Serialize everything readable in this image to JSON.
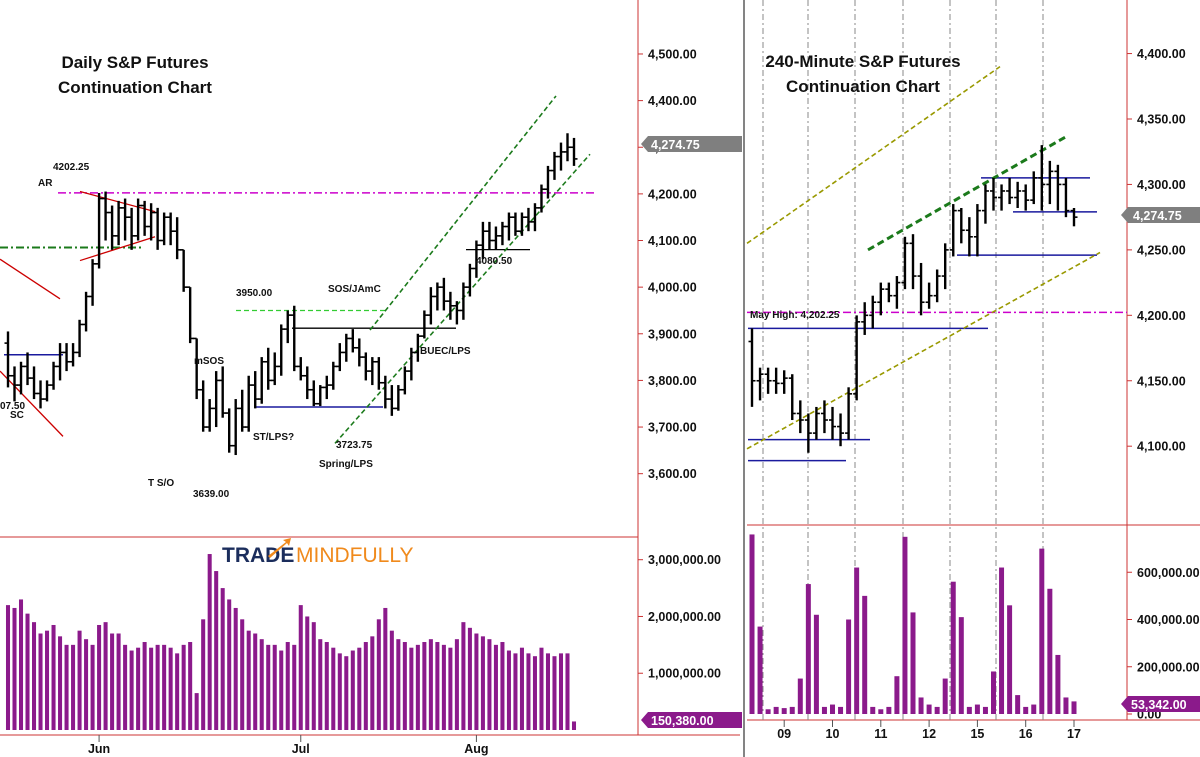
{
  "chart_data": [
    {
      "type": "bar",
      "title": "Daily S&P Futures",
      "subtitle": "Continuation Chart",
      "instrument_type": "ohlc-bars-with-volume",
      "x_tick_labels": [
        "Jun",
        "Jul",
        "Aug"
      ],
      "y_tick_labels": [
        "4,500.00",
        "4,400.00",
        "4,300.00",
        "4,200.00",
        "4,100.00",
        "4,000.00",
        "3,900.00",
        "3,800.00",
        "3,700.00",
        "3,600.00"
      ],
      "ylim": [
        3550,
        4560
      ],
      "last_price": "4,274.75",
      "volume_tick_labels": [
        "3,000,000.00",
        "2,000,000.00",
        "1,000,000.00"
      ],
      "volume_ylim": [
        0,
        3400000
      ],
      "last_volume": "150,380.00",
      "bars": [
        [
          3880,
          3905,
          3785,
          3810
        ],
        [
          3810,
          3830,
          3755,
          3790
        ],
        [
          3790,
          3840,
          3770,
          3830
        ],
        [
          3830,
          3860,
          3790,
          3805
        ],
        [
          3805,
          3830,
          3760,
          3772
        ],
        [
          3772,
          3800,
          3740,
          3760
        ],
        [
          3760,
          3800,
          3755,
          3790
        ],
        [
          3790,
          3840,
          3780,
          3830
        ],
        [
          3830,
          3880,
          3800,
          3860
        ],
        [
          3860,
          3880,
          3820,
          3840
        ],
        [
          3840,
          3880,
          3830,
          3860
        ],
        [
          3860,
          3930,
          3850,
          3920
        ],
        [
          3920,
          3990,
          3905,
          3980
        ],
        [
          3980,
          4060,
          3960,
          4050
        ],
        [
          4050,
          4202,
          4040,
          4190
        ],
        [
          4190,
          4205,
          4100,
          4160
        ],
        [
          4160,
          4175,
          4080,
          4110
        ],
        [
          4110,
          4185,
          4090,
          4170
        ],
        [
          4170,
          4190,
          4100,
          4150
        ],
        [
          4150,
          4170,
          4080,
          4110
        ],
        [
          4110,
          4190,
          4100,
          4175
        ],
        [
          4175,
          4185,
          4110,
          4130
        ],
        [
          4130,
          4180,
          4100,
          4160
        ],
        [
          4160,
          4170,
          4080,
          4100
        ],
        [
          4100,
          4160,
          4090,
          4150
        ],
        [
          4150,
          4160,
          4090,
          4120
        ],
        [
          4120,
          4150,
          4060,
          4080
        ],
        [
          4080,
          4080,
          3990,
          4000
        ],
        [
          4000,
          4000,
          3880,
          3890
        ],
        [
          3890,
          3890,
          3760,
          3780
        ],
        [
          3780,
          3800,
          3690,
          3700
        ],
        [
          3700,
          3760,
          3690,
          3740
        ],
        [
          3740,
          3820,
          3700,
          3800
        ],
        [
          3800,
          3830,
          3720,
          3730
        ],
        [
          3730,
          3740,
          3645,
          3660
        ],
        [
          3660,
          3760,
          3640,
          3740
        ],
        [
          3740,
          3780,
          3690,
          3700
        ],
        [
          3700,
          3810,
          3690,
          3790
        ],
        [
          3790,
          3820,
          3740,
          3760
        ],
        [
          3760,
          3850,
          3750,
          3840
        ],
        [
          3840,
          3870,
          3780,
          3800
        ],
        [
          3800,
          3860,
          3790,
          3830
        ],
        [
          3830,
          3920,
          3810,
          3910
        ],
        [
          3910,
          3950,
          3880,
          3940
        ],
        [
          3940,
          3960,
          3820,
          3830
        ],
        [
          3830,
          3850,
          3800,
          3810
        ],
        [
          3810,
          3830,
          3760,
          3780
        ],
        [
          3780,
          3800,
          3745,
          3750
        ],
        [
          3750,
          3790,
          3745,
          3785
        ],
        [
          3785,
          3810,
          3760,
          3790
        ],
        [
          3790,
          3840,
          3780,
          3830
        ],
        [
          3830,
          3880,
          3820,
          3860
        ],
        [
          3860,
          3900,
          3840,
          3890
        ],
        [
          3890,
          3910,
          3860,
          3870
        ],
        [
          3870,
          3890,
          3830,
          3850
        ],
        [
          3850,
          3860,
          3800,
          3820
        ],
        [
          3820,
          3850,
          3790,
          3840
        ],
        [
          3840,
          3850,
          3780,
          3795
        ],
        [
          3795,
          3810,
          3740,
          3760
        ],
        [
          3760,
          3790,
          3724,
          3740
        ],
        [
          3740,
          3790,
          3735,
          3780
        ],
        [
          3780,
          3830,
          3770,
          3820
        ],
        [
          3820,
          3870,
          3800,
          3860
        ],
        [
          3860,
          3900,
          3840,
          3895
        ],
        [
          3895,
          3950,
          3890,
          3940
        ],
        [
          3940,
          4000,
          3920,
          3980
        ],
        [
          3980,
          4010,
          3950,
          4000
        ],
        [
          4000,
          4020,
          3950,
          3970
        ],
        [
          3970,
          3990,
          3930,
          3960
        ],
        [
          3960,
          3970,
          3920,
          3950
        ],
        [
          3950,
          4010,
          3930,
          4000
        ],
        [
          4000,
          4050,
          3980,
          4040
        ],
        [
          4040,
          4100,
          4020,
          4090
        ],
        [
          4090,
          4140,
          4060,
          4120
        ],
        [
          4120,
          4140,
          4080,
          4100
        ],
        [
          4100,
          4130,
          4081,
          4110
        ],
        [
          4110,
          4140,
          4090,
          4130
        ],
        [
          4130,
          4160,
          4100,
          4150
        ],
        [
          4150,
          4160,
          4110,
          4120
        ],
        [
          4120,
          4160,
          4110,
          4150
        ],
        [
          4150,
          4170,
          4120,
          4140
        ],
        [
          4140,
          4180,
          4120,
          4170
        ],
        [
          4170,
          4220,
          4160,
          4210
        ],
        [
          4210,
          4260,
          4190,
          4250
        ],
        [
          4250,
          4290,
          4230,
          4280
        ],
        [
          4280,
          4310,
          4250,
          4290
        ],
        [
          4290,
          4330,
          4270,
          4300
        ],
        [
          4300,
          4320,
          4260,
          4275
        ]
      ],
      "volume": [
        2200000,
        2150000,
        2300000,
        2050000,
        1900000,
        1700000,
        1750000,
        1850000,
        1650000,
        1500000,
        1500000,
        1750000,
        1600000,
        1500000,
        1850000,
        1900000,
        1700000,
        1700000,
        1500000,
        1400000,
        1450000,
        1550000,
        1450000,
        1500000,
        1500000,
        1450000,
        1350000,
        1500000,
        1550000,
        650000,
        1950000,
        3100000,
        2800000,
        2500000,
        2300000,
        2150000,
        1950000,
        1750000,
        1700000,
        1600000,
        1500000,
        1500000,
        1400000,
        1550000,
        1500000,
        2200000,
        2000000,
        1900000,
        1600000,
        1550000,
        1450000,
        1350000,
        1300000,
        1400000,
        1450000,
        1550000,
        1650000,
        1950000,
        2150000,
        1750000,
        1600000,
        1550000,
        1450000,
        1500000,
        1550000,
        1600000,
        1550000,
        1500000,
        1450000,
        1600000,
        1900000,
        1800000,
        1700000,
        1650000,
        1600000,
        1500000,
        1550000,
        1400000,
        1350000,
        1450000,
        1350000,
        1300000,
        1450000,
        1350000,
        1300000,
        1350000,
        1350000,
        150380
      ],
      "annotations": [
        "AR",
        "4202.25",
        "07.50",
        "SC",
        "T S/O",
        "3639.00",
        "mSOS",
        "3950.00",
        "ST/LPS?",
        "3723.75",
        "Spring/LPS",
        "SOS/JAmC",
        "BUEC/LPS",
        "4080.50"
      ],
      "logo": "TRADEMINDFULLY",
      "colors": {
        "bar": "#000000",
        "volume": "#8b1a8b",
        "axis": "#cc3333",
        "horizontal_support": "#1a1a9e",
        "trend_channel": "#1b7a1b",
        "resistance_level": "#cc00cc",
        "wedge": "#cc0000",
        "last_price_tag": "#7f7f7f",
        "last_volume_tag": "#8b1a8b"
      }
    },
    {
      "type": "bar",
      "title": "240-Minute S&P Futures",
      "subtitle": "Continuation Chart",
      "instrument_type": "ohlc-bars-with-volume",
      "x_tick_labels": [
        "09",
        "10",
        "11",
        "12",
        "15",
        "16",
        "17"
      ],
      "y_tick_labels": [
        "4,400.00",
        "4,350.00",
        "4,300.00",
        "4,250.00",
        "4,200.00",
        "4,150.00",
        "4,100.00"
      ],
      "ylim": [
        4065,
        4418
      ],
      "last_price": "4,274.75",
      "volume_tick_labels": [
        "600,000.00",
        "400,000.00",
        "200,000.00",
        "0.00"
      ],
      "volume_ylim": [
        0,
        800000
      ],
      "last_volume": "53,342.00",
      "reference_label": "May High: 4,202.25",
      "bars": [
        [
          4180,
          4190,
          4130,
          4150
        ],
        [
          4150,
          4160,
          4135,
          4155
        ],
        [
          4155,
          4160,
          4140,
          4150
        ],
        [
          4150,
          4160,
          4140,
          4148
        ],
        [
          4148,
          4158,
          4140,
          4152
        ],
        [
          4152,
          4155,
          4120,
          4125
        ],
        [
          4125,
          4135,
          4110,
          4120
        ],
        [
          4120,
          4125,
          4095,
          4110
        ],
        [
          4110,
          4130,
          4105,
          4125
        ],
        [
          4125,
          4135,
          4110,
          4120
        ],
        [
          4120,
          4130,
          4105,
          4115
        ],
        [
          4115,
          4125,
          4100,
          4110
        ],
        [
          4110,
          4145,
          4105,
          4140
        ],
        [
          4140,
          4200,
          4135,
          4195
        ],
        [
          4195,
          4210,
          4185,
          4200
        ],
        [
          4200,
          4215,
          4190,
          4210
        ],
        [
          4210,
          4225,
          4200,
          4220
        ],
        [
          4220,
          4225,
          4210,
          4215
        ],
        [
          4215,
          4230,
          4205,
          4225
        ],
        [
          4225,
          4260,
          4220,
          4255
        ],
        [
          4255,
          4262,
          4220,
          4230
        ],
        [
          4230,
          4240,
          4200,
          4210
        ],
        [
          4210,
          4225,
          4205,
          4215
        ],
        [
          4215,
          4235,
          4210,
          4230
        ],
        [
          4230,
          4255,
          4220,
          4250
        ],
        [
          4250,
          4285,
          4245,
          4280
        ],
        [
          4280,
          4282,
          4255,
          4265
        ],
        [
          4265,
          4275,
          4245,
          4260
        ],
        [
          4260,
          4285,
          4245,
          4280
        ],
        [
          4280,
          4300,
          4270,
          4295
        ],
        [
          4295,
          4305,
          4280,
          4290
        ],
        [
          4290,
          4300,
          4280,
          4295
        ],
        [
          4295,
          4305,
          4285,
          4290
        ],
        [
          4290,
          4302,
          4282,
          4295
        ],
        [
          4295,
          4300,
          4280,
          4288
        ],
        [
          4288,
          4310,
          4285,
          4305
        ],
        [
          4305,
          4330,
          4280,
          4300
        ],
        [
          4300,
          4318,
          4285,
          4310
        ],
        [
          4310,
          4315,
          4280,
          4300
        ],
        [
          4300,
          4305,
          4275,
          4280
        ],
        [
          4280,
          4282,
          4268,
          4275
        ]
      ],
      "volume": [
        760000,
        370000,
        20000,
        30000,
        25000,
        30000,
        150000,
        550000,
        420000,
        30000,
        40000,
        30000,
        400000,
        620000,
        500000,
        30000,
        20000,
        30000,
        160000,
        750000,
        430000,
        70000,
        40000,
        30000,
        150000,
        560000,
        410000,
        30000,
        40000,
        30000,
        180000,
        620000,
        460000,
        80000,
        30000,
        40000,
        700000,
        530000,
        250000,
        70000,
        53342
      ],
      "colors": {
        "bar": "#000000",
        "volume": "#8b1a8b",
        "axis": "#cc3333",
        "horizontal_support": "#1a1a9e",
        "trend_channel": "#999900",
        "upper_trendline": "#1b7a1b",
        "resistance_level": "#cc00cc",
        "last_price_tag": "#7f7f7f",
        "last_volume_tag": "#8b1a8b"
      }
    }
  ]
}
